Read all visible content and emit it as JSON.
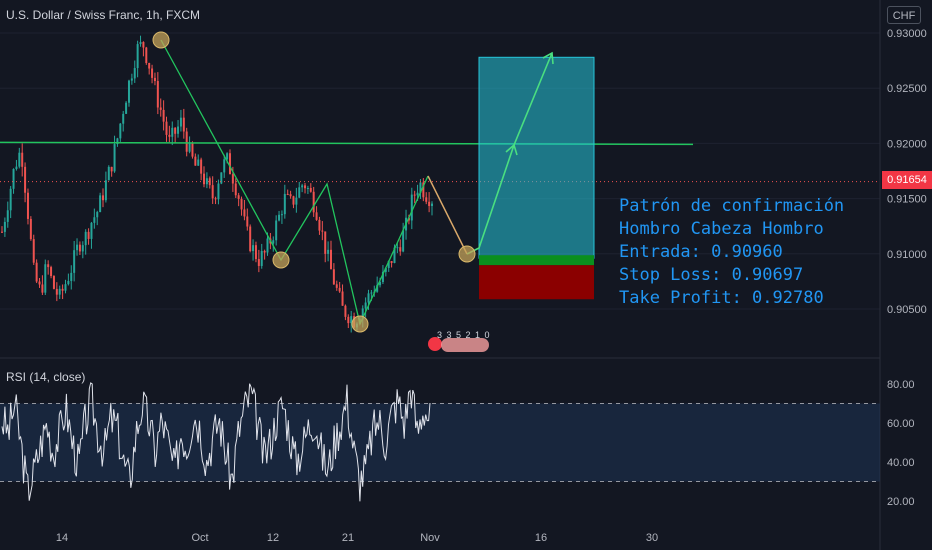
{
  "header": {
    "symbol": "U.S. Dollar / Swiss Franc, 1h, FXCM",
    "currency": "CHF"
  },
  "rsi": {
    "label": "RSI (14, close)",
    "upper": 70,
    "lower": 30,
    "ticks": [
      "80.00",
      "60.00",
      "40.00",
      "20.00"
    ]
  },
  "price_axis": {
    "ticks": [
      "0.93000",
      "0.92500",
      "0.92000",
      "0.91500",
      "0.91000",
      "0.90500"
    ],
    "last_price": "0.91654"
  },
  "time_axis": {
    "ticks": [
      "14",
      "Oct",
      "12",
      "21",
      "Nov",
      "16",
      "30"
    ]
  },
  "annotation": {
    "line1": "Patrón de confirmación",
    "line2": "Hombro Cabeza Hombro",
    "line3": "Entrada: 0.90960",
    "line4": "Stop Loss: 0.90697",
    "line5": "Take Profit: 0.92780"
  },
  "events": {
    "text": "3 3 5 2 1 0"
  },
  "colors": {
    "background": "#131722",
    "up": "#26a69a",
    "down": "#ef5350",
    "neckline": "#22c55e",
    "target_zone": "#26c6da",
    "stop_zone": "#8b0000",
    "text_blue": "#2196f3"
  },
  "chart_data": [
    {
      "type": "candlestick",
      "title": "U.S. Dollar / Swiss Franc, 1h, FXCM",
      "ylim": [
        0.9015,
        0.9305
      ],
      "x_ticks": [
        "14",
        "Oct",
        "12",
        "21",
        "Nov",
        "16",
        "30"
      ],
      "y_ticks": [
        0.905,
        0.91,
        0.915,
        0.92,
        0.925,
        0.93
      ],
      "last_price": 0.91654,
      "neckline": 0.92,
      "entry": 0.9096,
      "stop_loss": 0.90697,
      "take_profit": 0.9278,
      "pattern_points": [
        {
          "label": "left shoulder high",
          "y": 0.9292
        },
        {
          "label": "low 1",
          "y": 0.9097
        },
        {
          "label": "rally high",
          "y": 0.9165
        },
        {
          "label": "head low",
          "y": 0.9037
        },
        {
          "label": "right shoulder high",
          "y": 0.9168
        },
        {
          "label": "entry",
          "y": 0.91
        }
      ],
      "path_close": [
        0.912,
        0.915,
        0.918,
        0.9195,
        0.914,
        0.908,
        0.9065,
        0.909,
        0.907,
        0.906,
        0.9075,
        0.909,
        0.911,
        0.9115,
        0.913,
        0.914,
        0.916,
        0.918,
        0.9205,
        0.9235,
        0.926,
        0.9285,
        0.929,
        0.927,
        0.9245,
        0.9225,
        0.92,
        0.921,
        0.922,
        0.9195,
        0.918,
        0.9175,
        0.916,
        0.915,
        0.9175,
        0.9185,
        0.917,
        0.915,
        0.912,
        0.9105,
        0.9095,
        0.91,
        0.9115,
        0.913,
        0.915,
        0.9145,
        0.9155,
        0.9165,
        0.9155,
        0.914,
        0.9115,
        0.909,
        0.907,
        0.905,
        0.9045,
        0.904,
        0.905,
        0.906,
        0.907,
        0.9075,
        0.9085,
        0.91,
        0.911,
        0.9125,
        0.915,
        0.9165,
        0.9155,
        0.915
      ]
    },
    {
      "type": "line",
      "title": "RSI (14, close)",
      "ylim": [
        15,
        88
      ],
      "bands": [
        30,
        70
      ],
      "values": [
        62,
        55,
        70,
        48,
        25,
        35,
        48,
        60,
        45,
        55,
        68,
        50,
        38,
        60,
        72,
        55,
        45,
        62,
        58,
        40,
        30,
        55,
        70,
        60,
        45,
        62,
        50,
        35,
        55,
        48,
        65,
        58,
        40,
        52,
        62,
        45,
        30,
        55,
        68,
        75,
        60,
        42,
        50,
        63,
        70,
        55,
        40,
        48,
        58,
        62,
        45,
        35,
        50,
        60,
        72,
        48,
        30,
        38,
        55,
        62,
        50,
        65,
        72,
        60,
        80,
        55,
        68,
        62
      ]
    }
  ]
}
